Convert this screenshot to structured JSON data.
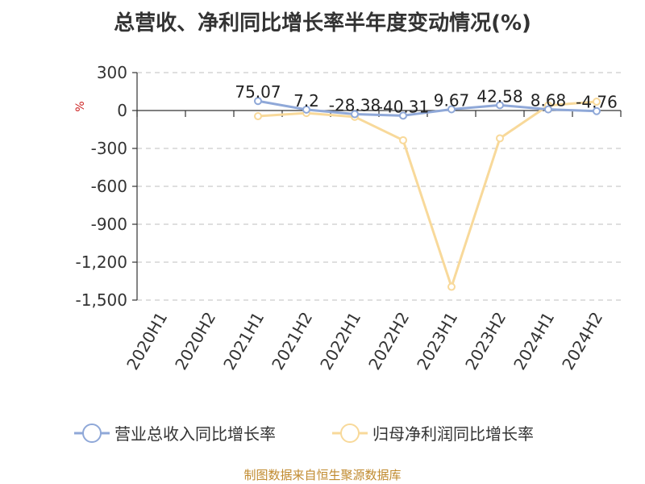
{
  "title": "总营收、净利同比增长率半年度变动情况(%)",
  "footer": "制图数据来自恒生聚源数据库",
  "chart_data": {
    "type": "line",
    "title": "总营收、净利同比增长率半年度变动情况(%)",
    "ylabel": "%",
    "ylim": [
      -1500,
      300
    ],
    "yticks": [
      300,
      0,
      -300,
      -600,
      -900,
      -1200,
      -1500
    ],
    "ytick_labels": [
      "300",
      "0",
      "-300",
      "-600",
      "-900",
      "-1,200",
      "-1,500"
    ],
    "categories": [
      "2020H1",
      "2020H2",
      "2021H1",
      "2021H2",
      "2022H1",
      "2022H2",
      "2023H1",
      "2023H2",
      "2024H1",
      "2024H2"
    ],
    "grid": true,
    "legend_position": "bottom",
    "series": [
      {
        "name": "营业总收入同比增长率",
        "color": "#8fa8d8",
        "values": [
          null,
          null,
          75.07,
          7.2,
          -28.38,
          -40.31,
          9.67,
          42.58,
          8.68,
          -4.76
        ],
        "labels": [
          null,
          null,
          "75.07",
          "7.2",
          "-28.38",
          "-40.31",
          "9.67",
          "42.58",
          "8.68",
          "-4.76"
        ]
      },
      {
        "name": "归母净利润同比增长率",
        "color": "#f8d99a",
        "values": [
          null,
          null,
          -45,
          -20,
          -50,
          -235,
          -1395,
          -220,
          40,
          70
        ]
      }
    ]
  }
}
